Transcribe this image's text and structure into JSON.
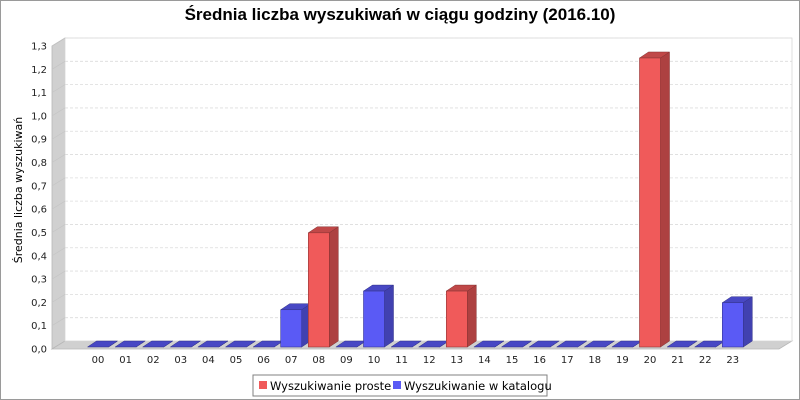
{
  "chart_data": {
    "type": "bar",
    "title": "Średnia liczba wyszukiwań w ciągu godziny (2016.10)",
    "ylabel": "Średnia liczba wyszukiwań",
    "xlabel": "",
    "ylim": [
      0,
      1.3
    ],
    "ytick_step": 0.1,
    "grid": true,
    "legend_position": "bottom",
    "categories": [
      "00",
      "01",
      "02",
      "03",
      "04",
      "05",
      "06",
      "07",
      "08",
      "09",
      "10",
      "11",
      "12",
      "13",
      "14",
      "15",
      "16",
      "17",
      "18",
      "19",
      "20",
      "21",
      "22",
      "23"
    ],
    "series": [
      {
        "name": "Wyszukiwanie proste",
        "color": "#f05a5a",
        "values": [
          0,
          0,
          0,
          0,
          0,
          0,
          0,
          0,
          0.49,
          0,
          0,
          0,
          0,
          0.24,
          0,
          0,
          0,
          0,
          0,
          0,
          1.24,
          0,
          0,
          0
        ]
      },
      {
        "name": "Wyszukiwanie w katalogu",
        "color": "#5a5af5",
        "values": [
          0,
          0,
          0,
          0,
          0,
          0,
          0,
          0.16,
          0,
          0,
          0.24,
          0,
          0,
          0,
          0,
          0,
          0,
          0,
          0,
          0,
          0,
          0,
          0,
          0.19
        ]
      }
    ]
  }
}
